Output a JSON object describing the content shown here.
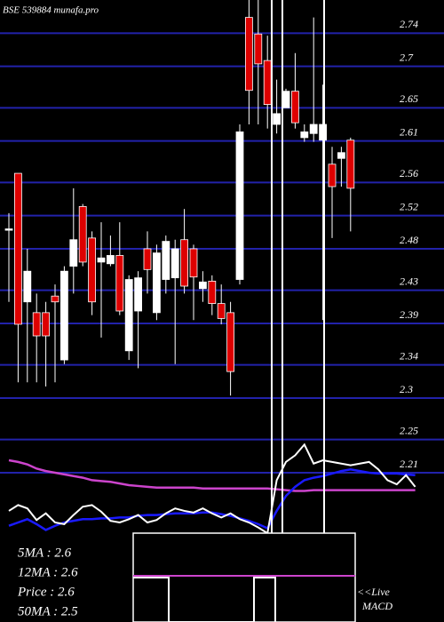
{
  "chart_data": {
    "type": "candlestick",
    "title": "BSE 539884  munafa.pro",
    "ylim": [
      2.03,
      2.78
    ],
    "yticks": [
      2.74,
      2.7,
      2.65,
      2.61,
      2.56,
      2.52,
      2.48,
      2.43,
      2.39,
      2.34,
      2.3,
      2.25,
      2.21
    ],
    "grid": true,
    "grid_color": "#2222aa",
    "up_color": "#ffffff",
    "down_color": "#dd0000",
    "open": [
      2.504,
      2.571,
      2.416,
      2.403,
      2.403,
      2.423,
      2.346,
      2.459,
      2.531,
      2.493,
      2.464,
      2.462,
      2.472,
      2.357,
      2.405,
      2.48,
      2.403,
      2.443,
      2.445,
      2.491,
      2.48,
      2.432,
      2.441,
      2.414,
      2.403,
      2.443,
      2.759,
      2.739,
      2.707,
      2.63,
      2.65,
      2.67,
      2.614,
      2.619,
      2.611,
      2.582,
      2.589,
      2.611
    ],
    "high": [
      2.523,
      2.571,
      2.48,
      2.426,
      2.416,
      2.437,
      2.459,
      2.553,
      2.534,
      2.501,
      2.512,
      2.496,
      2.512,
      2.448,
      2.453,
      2.501,
      2.485,
      2.496,
      2.491,
      2.528,
      2.485,
      2.453,
      2.448,
      2.437,
      2.416,
      2.63,
      2.78,
      2.78,
      2.737,
      2.684,
      2.673,
      2.716,
      2.63,
      2.759,
      2.678,
      2.603,
      2.603,
      2.614
    ],
    "low": [
      2.416,
      2.319,
      2.319,
      2.319,
      2.314,
      2.319,
      2.341,
      2.426,
      2.459,
      2.4,
      2.373,
      2.459,
      2.4,
      2.346,
      2.336,
      2.426,
      2.394,
      2.426,
      2.341,
      2.426,
      2.394,
      2.416,
      2.4,
      2.389,
      2.303,
      2.437,
      2.63,
      2.63,
      2.625,
      2.619,
      2.65,
      2.625,
      2.609,
      2.609,
      2.394,
      2.493,
      2.555,
      2.501
    ],
    "close": [
      2.504,
      2.389,
      2.453,
      2.375,
      2.375,
      2.416,
      2.453,
      2.491,
      2.464,
      2.416,
      2.469,
      2.472,
      2.405,
      2.443,
      2.445,
      2.455,
      2.475,
      2.489,
      2.48,
      2.435,
      2.446,
      2.44,
      2.414,
      2.396,
      2.332,
      2.621,
      2.671,
      2.703,
      2.654,
      2.643,
      2.67,
      2.632,
      2.621,
      2.63,
      2.63,
      2.555,
      2.596,
      2.553
    ],
    "lines": [
      {
        "color": "#cc44cc",
        "values": [
          2.225,
          2.223,
          2.22,
          2.215,
          2.212,
          2.21,
          2.208,
          2.206,
          2.204,
          2.201,
          2.2,
          2.199,
          2.197,
          2.195,
          2.194,
          2.193,
          2.192,
          2.192,
          2.192,
          2.192,
          2.192,
          2.191,
          2.191,
          2.191,
          2.191,
          2.191,
          2.191,
          2.191,
          2.191,
          2.19,
          2.189,
          2.188,
          2.188,
          2.189,
          2.189,
          2.189,
          2.189,
          2.189,
          2.189,
          2.189,
          2.189,
          2.189,
          2.189,
          2.189,
          2.189
        ]
      },
      {
        "color": "#1a1aff",
        "values": [
          2.146,
          2.15,
          2.154,
          2.148,
          2.141,
          2.146,
          2.15,
          2.152,
          2.154,
          2.154,
          2.155,
          2.155,
          2.156,
          2.156,
          2.158,
          2.159,
          2.159,
          2.16,
          2.161,
          2.161,
          2.161,
          2.162,
          2.162,
          2.16,
          2.158,
          2.155,
          2.152,
          2.148,
          2.143,
          2.164,
          2.182,
          2.193,
          2.201,
          2.204,
          2.206,
          2.209,
          2.212,
          2.214,
          2.212,
          2.21,
          2.209,
          2.209,
          2.209,
          2.208,
          2.207
        ]
      },
      {
        "color": "#ffffff",
        "values": [
          2.164,
          2.171,
          2.167,
          2.153,
          2.161,
          2.15,
          2.148,
          2.159,
          2.169,
          2.171,
          2.163,
          2.152,
          2.15,
          2.154,
          2.159,
          2.15,
          2.153,
          2.161,
          2.167,
          2.164,
          2.162,
          2.167,
          2.161,
          2.156,
          2.161,
          2.154,
          2.15,
          2.144,
          2.137,
          2.201,
          2.223,
          2.231,
          2.244,
          2.221,
          2.225,
          2.223,
          2.221,
          2.219,
          2.221,
          2.223,
          2.214,
          2.201,
          2.196,
          2.207,
          2.193
        ]
      }
    ],
    "annotations": [
      "5MA : 2.6",
      "12MA : 2.6",
      "Price  : 2.6",
      "50MA : 2.5"
    ],
    "macd_label": [
      "<<Live",
      "MACD"
    ]
  }
}
